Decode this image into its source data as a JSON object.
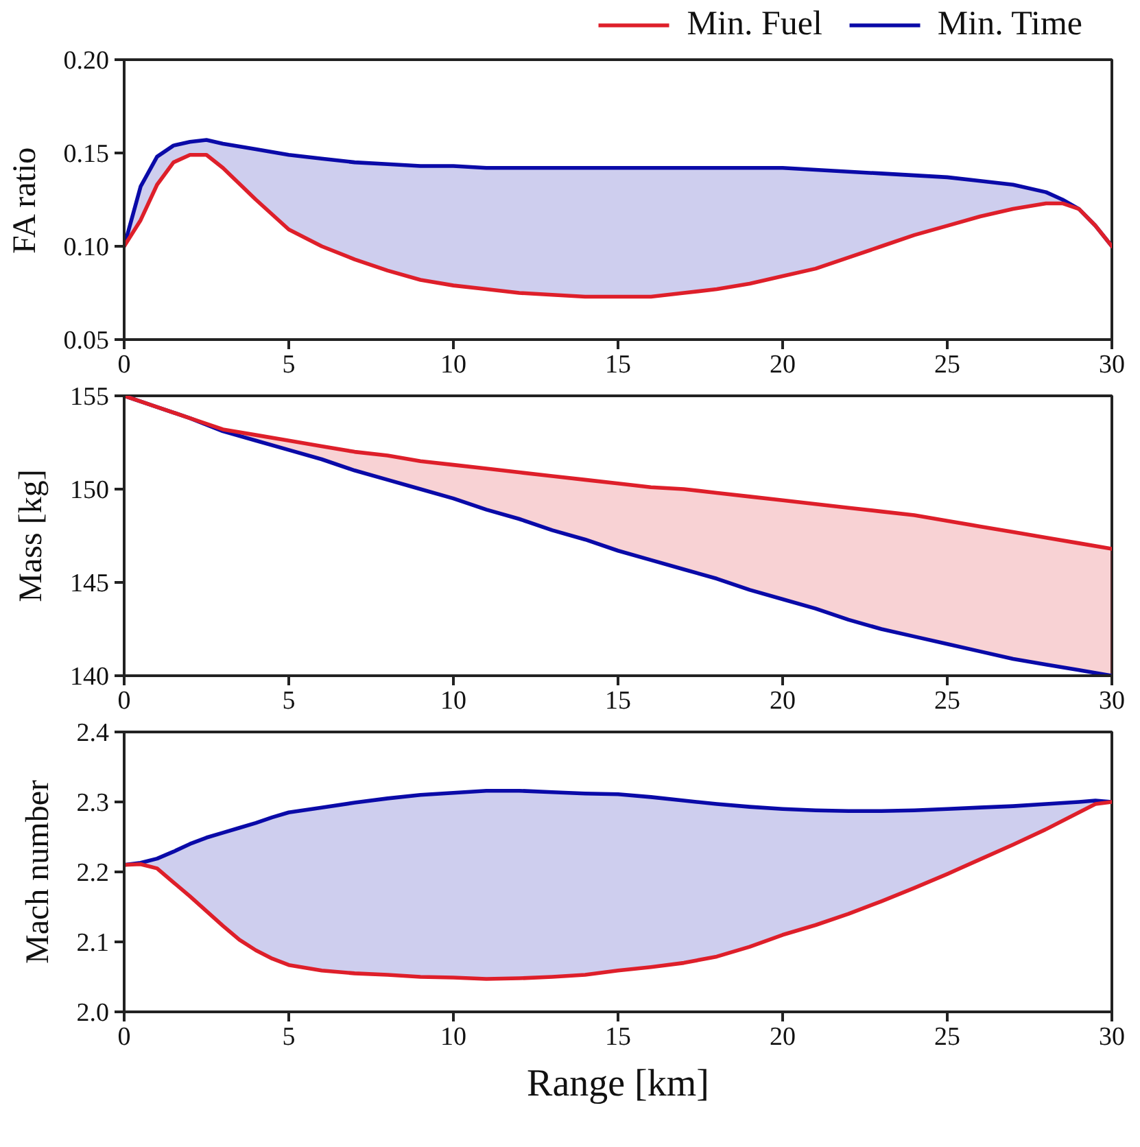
{
  "chart_data": [
    {
      "type": "line",
      "ylabel": "FA ratio",
      "legend": "top right",
      "x": [
        0,
        0.5,
        1,
        1.5,
        2,
        2.5,
        3,
        4,
        5,
        6,
        7,
        8,
        9,
        10,
        11,
        12,
        13,
        14,
        15,
        16,
        17,
        18,
        19,
        20,
        21,
        22,
        23,
        24,
        25,
        26,
        27,
        28,
        28.5,
        29,
        29.5,
        30
      ],
      "xlim": [
        0,
        30
      ],
      "xticks": [
        0,
        5,
        10,
        15,
        20,
        25,
        30
      ],
      "ylim": [
        0.05,
        0.2
      ],
      "yticks": [
        0.05,
        {
          "value": 0.1,
          "label": "0.10"
        },
        0.15,
        {
          "value": 0.2,
          "label": "0.20"
        }
      ],
      "series": [
        {
          "name": "Min. Fuel",
          "color": "#de1f2a",
          "values": [
            0.1,
            0.114,
            0.133,
            0.145,
            0.149,
            0.149,
            0.142,
            0.125,
            0.109,
            0.1,
            0.093,
            0.087,
            0.082,
            0.079,
            0.077,
            0.075,
            0.074,
            0.073,
            0.073,
            0.073,
            0.075,
            0.077,
            0.08,
            0.084,
            0.088,
            0.094,
            0.1,
            0.106,
            0.111,
            0.116,
            0.12,
            0.123,
            0.123,
            0.12,
            0.111,
            0.1
          ]
        },
        {
          "name": "Min. Time",
          "color": "#0a0aa8",
          "values": [
            0.1,
            0.132,
            0.148,
            0.154,
            0.156,
            0.157,
            0.155,
            0.152,
            0.149,
            0.147,
            0.145,
            0.144,
            0.143,
            0.143,
            0.142,
            0.142,
            0.142,
            0.142,
            0.142,
            0.142,
            0.142,
            0.142,
            0.142,
            0.142,
            0.141,
            0.14,
            0.139,
            0.138,
            0.137,
            0.135,
            0.133,
            0.129,
            0.125,
            0.12,
            0.111,
            0.1
          ],
          "lower": [
            0.1,
            0.114,
            0.133,
            0.145,
            0.149,
            0.149,
            0.142,
            0.125,
            0.109,
            0.1,
            0.093,
            0.087,
            0.082,
            0.079,
            0.077,
            0.075,
            0.074,
            0.073,
            0.073,
            0.073,
            0.075,
            0.077,
            0.08,
            0.084,
            0.088,
            0.094,
            0.1,
            0.106,
            0.111,
            0.116,
            0.12,
            0.123,
            0.123,
            0.12,
            0.111,
            0.1
          ],
          "upper": [
            0.1,
            0.132,
            0.148,
            0.154,
            0.156,
            0.157,
            0.155,
            0.152,
            0.149,
            0.147,
            0.145,
            0.144,
            0.143,
            0.143,
            0.142,
            0.142,
            0.142,
            0.142,
            0.142,
            0.142,
            0.142,
            0.142,
            0.142,
            0.142,
            0.141,
            0.14,
            0.139,
            0.138,
            0.137,
            0.135,
            0.133,
            0.129,
            0.125,
            0.12,
            0.111,
            0.1
          ]
        }
      ]
    },
    {
      "type": "line",
      "ylabel": "Mass [kg]",
      "x": [
        0,
        1,
        2,
        3,
        4,
        5,
        6,
        7,
        8,
        9,
        10,
        11,
        12,
        13,
        14,
        15,
        16,
        17,
        18,
        19,
        20,
        21,
        22,
        23,
        24,
        25,
        26,
        27,
        28,
        29,
        30
      ],
      "xlim": [
        0,
        30
      ],
      "xticks": [
        0,
        5,
        10,
        15,
        20,
        25,
        30
      ],
      "ylim": [
        140,
        155
      ],
      "yticks": [
        140,
        145,
        150,
        155
      ],
      "series": [
        {
          "color": "#de1f2a",
          "values": [
            155.0,
            154.4,
            153.8,
            153.2,
            152.9,
            152.6,
            152.3,
            152.0,
            151.8,
            151.5,
            151.3,
            151.1,
            150.9,
            150.7,
            150.5,
            150.3,
            150.1,
            150.0,
            149.8,
            149.6,
            149.4,
            149.2,
            149.0,
            148.8,
            148.6,
            148.3,
            148.0,
            147.7,
            147.4,
            147.1,
            146.8
          ],
          "lower": [
            155.0,
            154.4,
            153.8,
            153.1,
            152.6,
            152.1,
            151.6,
            151.0,
            150.5,
            150.0,
            149.5,
            148.9,
            148.4,
            147.8,
            147.3,
            146.7,
            146.2,
            145.7,
            145.2,
            144.6,
            144.1,
            143.6,
            143.0,
            142.5,
            142.1,
            141.7,
            141.3,
            140.9,
            140.6,
            140.3,
            140.0
          ],
          "upper": [
            155.0,
            154.4,
            153.8,
            153.2,
            152.9,
            152.6,
            152.3,
            152.0,
            151.8,
            151.5,
            151.3,
            151.1,
            150.9,
            150.7,
            150.5,
            150.3,
            150.1,
            150.0,
            149.8,
            149.6,
            149.4,
            149.2,
            149.0,
            148.8,
            148.6,
            148.3,
            148.0,
            147.7,
            147.4,
            147.1,
            146.8
          ]
        },
        {
          "color": "#0a0aa8",
          "values": [
            155.0,
            154.4,
            153.8,
            153.1,
            152.6,
            152.1,
            151.6,
            151.0,
            150.5,
            150.0,
            149.5,
            148.9,
            148.4,
            147.8,
            147.3,
            146.7,
            146.2,
            145.7,
            145.2,
            144.6,
            144.1,
            143.6,
            143.0,
            142.5,
            142.1,
            141.7,
            141.3,
            140.9,
            140.6,
            140.3,
            140.0
          ]
        }
      ]
    },
    {
      "type": "line",
      "ylabel": "Mach number",
      "xlabel": "Range [km]",
      "x": [
        0,
        0.5,
        1,
        1.5,
        2,
        2.5,
        3,
        3.5,
        4,
        4.5,
        5,
        6,
        7,
        8,
        9,
        10,
        11,
        12,
        13,
        14,
        15,
        16,
        17,
        18,
        19,
        20,
        21,
        22,
        23,
        24,
        25,
        26,
        27,
        28,
        29,
        29.5,
        30
      ],
      "xlim": [
        0,
        30
      ],
      "xticks": [
        0,
        5,
        10,
        15,
        20,
        25,
        30
      ],
      "ylim": [
        2.0,
        2.4
      ],
      "yticks": [
        {
          "value": 2.0,
          "label": "2.0"
        },
        2.1,
        2.2,
        2.3,
        2.4
      ],
      "series": [
        {
          "color": "#de1f2a",
          "values": [
            2.21,
            2.211,
            2.205,
            2.185,
            2.165,
            2.144,
            2.123,
            2.103,
            2.088,
            2.076,
            2.067,
            2.059,
            2.055,
            2.053,
            2.05,
            2.049,
            2.047,
            2.048,
            2.05,
            2.053,
            2.059,
            2.064,
            2.07,
            2.079,
            2.093,
            2.11,
            2.124,
            2.14,
            2.158,
            2.177,
            2.197,
            2.218,
            2.239,
            2.261,
            2.285,
            2.297,
            2.3
          ]
        },
        {
          "color": "#0a0aa8",
          "values": [
            2.21,
            2.213,
            2.219,
            2.229,
            2.24,
            2.249,
            2.256,
            2.263,
            2.27,
            2.278,
            2.285,
            2.292,
            2.299,
            2.305,
            2.31,
            2.313,
            2.316,
            2.316,
            2.314,
            2.312,
            2.311,
            2.307,
            2.302,
            2.297,
            2.293,
            2.29,
            2.288,
            2.287,
            2.287,
            2.288,
            2.29,
            2.292,
            2.294,
            2.297,
            2.3,
            2.302,
            2.3
          ],
          "lower": [
            2.21,
            2.211,
            2.205,
            2.185,
            2.165,
            2.144,
            2.123,
            2.103,
            2.088,
            2.076,
            2.067,
            2.059,
            2.055,
            2.053,
            2.05,
            2.049,
            2.047,
            2.048,
            2.05,
            2.053,
            2.059,
            2.064,
            2.07,
            2.079,
            2.093,
            2.11,
            2.124,
            2.14,
            2.158,
            2.177,
            2.197,
            2.218,
            2.239,
            2.261,
            2.285,
            2.297,
            2.3
          ],
          "upper": [
            2.21,
            2.213,
            2.219,
            2.229,
            2.24,
            2.249,
            2.256,
            2.263,
            2.27,
            2.278,
            2.285,
            2.292,
            2.299,
            2.305,
            2.31,
            2.313,
            2.316,
            2.316,
            2.314,
            2.312,
            2.311,
            2.307,
            2.302,
            2.297,
            2.293,
            2.29,
            2.288,
            2.287,
            2.287,
            2.288,
            2.29,
            2.292,
            2.294,
            2.297,
            2.3,
            2.302,
            2.3
          ]
        }
      ]
    }
  ]
}
